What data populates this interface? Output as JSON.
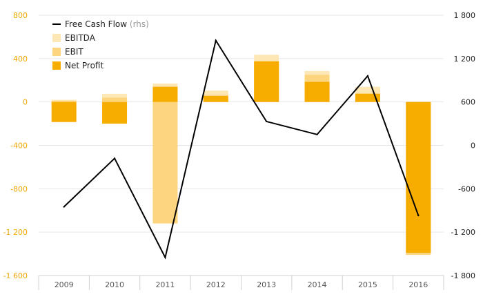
{
  "chart_data": {
    "type": "bar",
    "title": "",
    "categories": [
      "2009",
      "2010",
      "2011",
      "2012",
      "2013",
      "2014",
      "2015",
      "2016"
    ],
    "left_axis": {
      "ylim": [
        -1600,
        800
      ],
      "ticks": [
        "800",
        "400",
        "0",
        "-400",
        "-800",
        "-1 200",
        "-1 600"
      ],
      "tick_values": [
        800,
        400,
        0,
        -400,
        -800,
        -1200,
        -1600
      ]
    },
    "right_axis": {
      "ylim": [
        -1800,
        1800
      ],
      "ticks": [
        "1 800",
        "1 200",
        "600",
        "0",
        "-600",
        "-1 200",
        "-1 800"
      ],
      "tick_values": [
        1800,
        1200,
        600,
        0,
        -600,
        -1200,
        -1800
      ]
    },
    "series": [
      {
        "name": "EBITDA",
        "type": "bar",
        "axis": "left",
        "color": "#fde8b5",
        "values": [
          20,
          75,
          170,
          105,
          435,
          285,
          140,
          -1395
        ]
      },
      {
        "name": "EBIT",
        "type": "bar",
        "axis": "left",
        "color": "#fdd57e",
        "values": [
          10,
          40,
          -1120,
          65,
          370,
          250,
          80,
          -1410
        ]
      },
      {
        "name": "Net Profit",
        "type": "bar",
        "axis": "left",
        "color": "#f7ac00",
        "values": [
          -185,
          -200,
          140,
          55,
          375,
          185,
          75,
          -1390
        ]
      },
      {
        "name": "Free Cash Flow",
        "type": "line",
        "axis": "right",
        "color": "#000000",
        "values": [
          -850,
          -180,
          -1550,
          1450,
          330,
          150,
          960,
          -970
        ]
      }
    ],
    "legend": {
      "placement": "top-left",
      "rhs_suffix": "(rhs)"
    },
    "grid": true
  }
}
